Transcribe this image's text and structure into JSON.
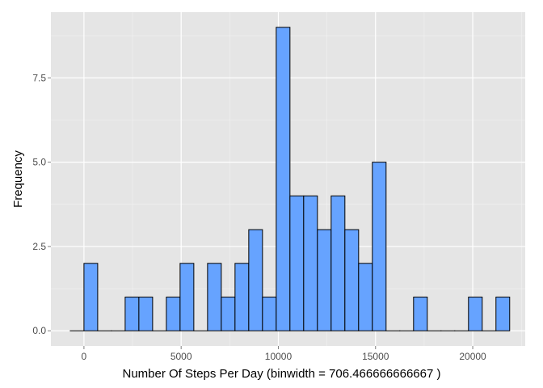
{
  "chart_data": {
    "type": "bar",
    "title": "",
    "xlabel": "Number Of Steps Per Day (binwidth = 706.466666666667 )",
    "ylabel": "Frequency",
    "binwidth": 706.466666666667,
    "x_ticks": [
      0,
      5000,
      10000,
      15000,
      20000
    ],
    "x_tick_labels": [
      "0",
      "5000",
      "10000",
      "15000",
      "20000"
    ],
    "y_ticks": [
      0,
      2.5,
      5,
      7.5
    ],
    "y_tick_labels": [
      "0.0",
      "2.5",
      "5.0",
      "7.5"
    ],
    "xlim": [
      -1700,
      22700
    ],
    "ylim": [
      -0.45,
      9.45
    ],
    "grid": true,
    "bins": [
      {
        "x": -353.2,
        "count": 0
      },
      {
        "x": 353.2,
        "count": 2
      },
      {
        "x": 1059.7,
        "count": 0
      },
      {
        "x": 1766.2,
        "count": 0
      },
      {
        "x": 2472.6,
        "count": 1
      },
      {
        "x": 3179.1,
        "count": 1
      },
      {
        "x": 3885.6,
        "count": 0
      },
      {
        "x": 4592.0,
        "count": 1
      },
      {
        "x": 5298.5,
        "count": 2
      },
      {
        "x": 6005.0,
        "count": 0
      },
      {
        "x": 6711.4,
        "count": 2
      },
      {
        "x": 7417.9,
        "count": 1
      },
      {
        "x": 8124.4,
        "count": 2
      },
      {
        "x": 8830.8,
        "count": 3
      },
      {
        "x": 9537.3,
        "count": 1
      },
      {
        "x": 10243.8,
        "count": 9
      },
      {
        "x": 10950.2,
        "count": 4
      },
      {
        "x": 11656.7,
        "count": 4
      },
      {
        "x": 12363.2,
        "count": 3
      },
      {
        "x": 13069.6,
        "count": 4
      },
      {
        "x": 13776.1,
        "count": 3
      },
      {
        "x": 14482.6,
        "count": 2
      },
      {
        "x": 15189.0,
        "count": 5
      },
      {
        "x": 15895.5,
        "count": 0
      },
      {
        "x": 16602.0,
        "count": 0
      },
      {
        "x": 17308.4,
        "count": 1
      },
      {
        "x": 18014.9,
        "count": 0
      },
      {
        "x": 18721.4,
        "count": 0
      },
      {
        "x": 19427.8,
        "count": 0
      },
      {
        "x": 20134.3,
        "count": 1
      },
      {
        "x": 20840.8,
        "count": 0
      },
      {
        "x": 21547.2,
        "count": 1
      }
    ],
    "colors": {
      "bar_fill": "#66a3ff",
      "bar_stroke": "#000000",
      "panel_bg": "#e5e5e5",
      "grid_major": "#ffffff",
      "grid_minor": "#f2f2f2"
    }
  }
}
